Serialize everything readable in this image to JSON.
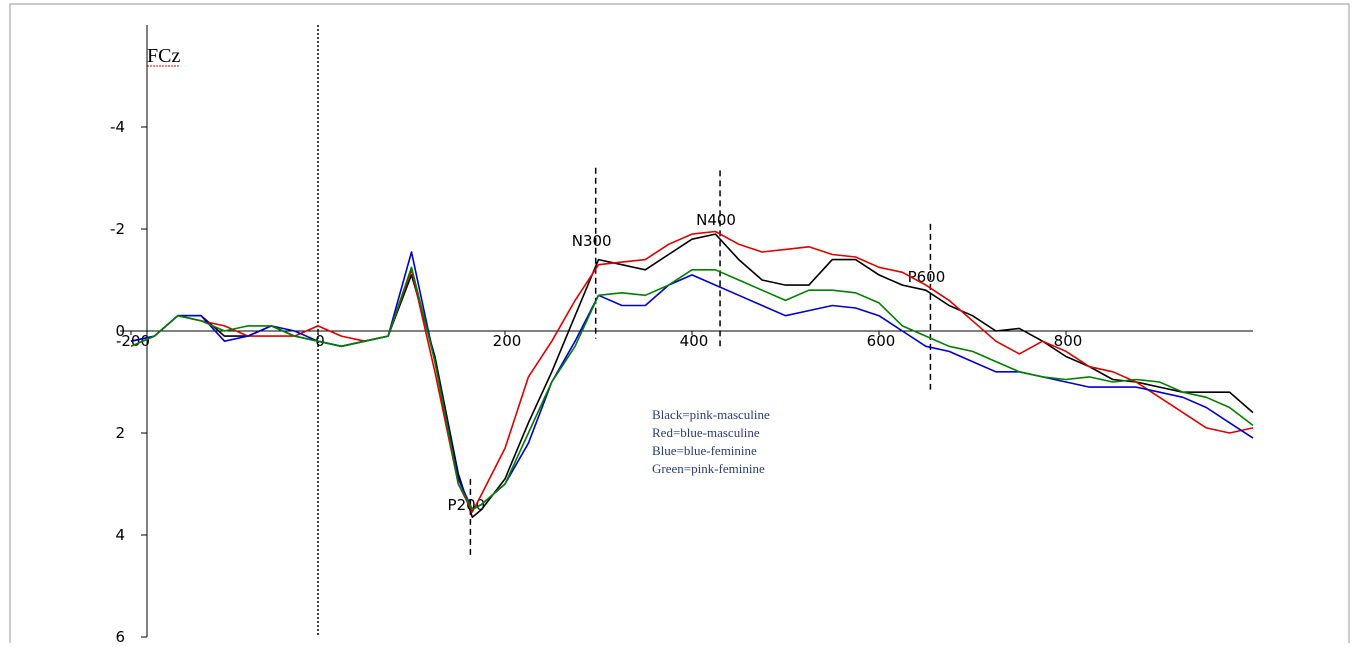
{
  "chart_data": {
    "type": "line",
    "title": "FCz",
    "x": [
      -200,
      -175,
      -150,
      -125,
      -100,
      -75,
      -50,
      -25,
      0,
      25,
      50,
      75,
      100,
      125,
      150,
      165,
      175,
      200,
      225,
      250,
      275,
      300,
      325,
      350,
      375,
      400,
      425,
      450,
      475,
      500,
      525,
      550,
      575,
      600,
      625,
      650,
      675,
      700,
      725,
      750,
      775,
      800,
      825,
      850,
      875,
      900,
      925,
      950,
      975,
      1000
    ],
    "series": [
      {
        "name": "Black=pink-masculine",
        "color": "#000000",
        "values": [
          0.2,
          0.1,
          -0.3,
          -0.3,
          0.1,
          0.1,
          -0.1,
          0.1,
          0.2,
          0.3,
          0.2,
          0.1,
          -1.1,
          0.5,
          2.8,
          3.65,
          3.5,
          2.9,
          1.8,
          0.8,
          -0.3,
          -1.4,
          -1.3,
          -1.2,
          -1.5,
          -1.8,
          -1.9,
          -1.4,
          -1.0,
          -0.9,
          -0.9,
          -1.4,
          -1.4,
          -1.1,
          -0.9,
          -0.8,
          -0.5,
          -0.3,
          0.0,
          -0.05,
          0.2,
          0.5,
          0.7,
          0.95,
          1.0,
          1.1,
          1.2,
          1.2,
          1.2,
          1.6
        ]
      },
      {
        "name": "Red=blue-masculine",
        "color": "#e00000",
        "values": [
          0.3,
          0.1,
          -0.3,
          -0.2,
          -0.1,
          0.1,
          0.1,
          0.1,
          -0.1,
          0.1,
          0.2,
          0.1,
          -1.2,
          0.8,
          3.0,
          3.55,
          3.2,
          2.3,
          0.9,
          0.2,
          -0.6,
          -1.3,
          -1.35,
          -1.4,
          -1.7,
          -1.9,
          -1.95,
          -1.7,
          -1.55,
          -1.6,
          -1.65,
          -1.5,
          -1.45,
          -1.25,
          -1.15,
          -0.9,
          -0.6,
          -0.2,
          0.2,
          0.45,
          0.2,
          0.4,
          0.7,
          0.8,
          1.0,
          1.3,
          1.6,
          1.9,
          2.0,
          1.9
        ]
      },
      {
        "name": "Blue=blue-feminine",
        "color": "#0000d0",
        "values": [
          0.2,
          0.1,
          -0.3,
          -0.3,
          0.2,
          0.1,
          -0.1,
          0.0,
          0.2,
          0.3,
          0.2,
          0.1,
          -1.55,
          0.6,
          2.9,
          3.5,
          3.4,
          3.0,
          2.2,
          1.0,
          0.2,
          -0.7,
          -0.5,
          -0.5,
          -0.9,
          -1.1,
          -0.9,
          -0.7,
          -0.5,
          -0.3,
          -0.4,
          -0.5,
          -0.45,
          -0.3,
          0.0,
          0.3,
          0.4,
          0.6,
          0.8,
          0.8,
          0.9,
          1.0,
          1.1,
          1.1,
          1.1,
          1.2,
          1.3,
          1.5,
          1.8,
          2.1
        ]
      },
      {
        "name": "Green=pink-feminine",
        "color": "#008000",
        "values": [
          0.3,
          0.1,
          -0.3,
          -0.2,
          0.0,
          -0.1,
          -0.1,
          0.1,
          0.2,
          0.3,
          0.2,
          0.1,
          -1.25,
          0.6,
          3.0,
          3.5,
          3.4,
          3.0,
          2.0,
          1.0,
          0.3,
          -0.7,
          -0.75,
          -0.7,
          -0.9,
          -1.2,
          -1.2,
          -1.0,
          -0.8,
          -0.6,
          -0.8,
          -0.8,
          -0.75,
          -0.55,
          -0.1,
          0.1,
          0.3,
          0.4,
          0.6,
          0.8,
          0.9,
          0.95,
          0.9,
          1.0,
          0.95,
          1.0,
          1.2,
          1.3,
          1.5,
          1.85
        ]
      }
    ],
    "xlim": [
      -200,
      1000
    ],
    "xticks": [
      -200,
      0,
      200,
      400,
      600,
      800
    ],
    "ylim": [
      -6,
      6
    ],
    "yticks": [
      -4,
      -2,
      0,
      2,
      4,
      6
    ],
    "y_inverted": true,
    "markers": [
      {
        "x": 0,
        "y": [
          -6,
          6
        ]
      },
      {
        "label": "P200",
        "x": 163,
        "y": [
          2.9,
          4.4
        ]
      },
      {
        "label": "N300",
        "x": 297,
        "y": [
          -3.2,
          0.15
        ]
      },
      {
        "label": "N400",
        "x": 430,
        "y": [
          -3.15,
          0.3
        ]
      },
      {
        "label": "P600",
        "x": 655,
        "y": [
          -2.1,
          1.15
        ]
      }
    ]
  }
}
